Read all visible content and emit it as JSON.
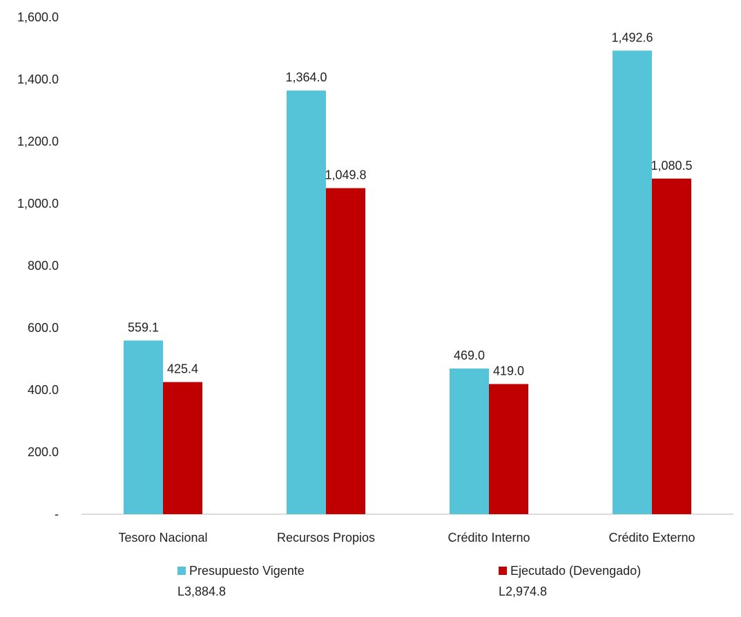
{
  "chart_data": {
    "type": "bar",
    "categories": [
      "Tesoro Nacional",
      "Recursos Propios",
      "Crédito Interno",
      "Crédito Externo"
    ],
    "series": [
      {
        "name": "Presupuesto Vigente",
        "total": "L3,884.8",
        "color": "#56C4D8",
        "values": [
          559.1,
          1364.0,
          469.0,
          1492.6
        ],
        "labels": [
          "559.1",
          "1,364.0",
          "469.0",
          "1,492.6"
        ]
      },
      {
        "name": "Ejecutado (Devengado)",
        "total": "L2,974.8",
        "color": "#C00000",
        "values": [
          425.4,
          1049.8,
          419.0,
          1080.5
        ],
        "labels": [
          "425.4",
          "1,049.8",
          "419.0",
          "1,080.5"
        ]
      }
    ],
    "yticks": [
      "-",
      "200.0",
      "400.0",
      "600.0",
      "800.0",
      "1,000.0",
      "1,200.0",
      "1,400.0",
      "1,600.0"
    ],
    "ylim": [
      0,
      1600
    ],
    "grid": false,
    "legend_position": "bottom"
  }
}
